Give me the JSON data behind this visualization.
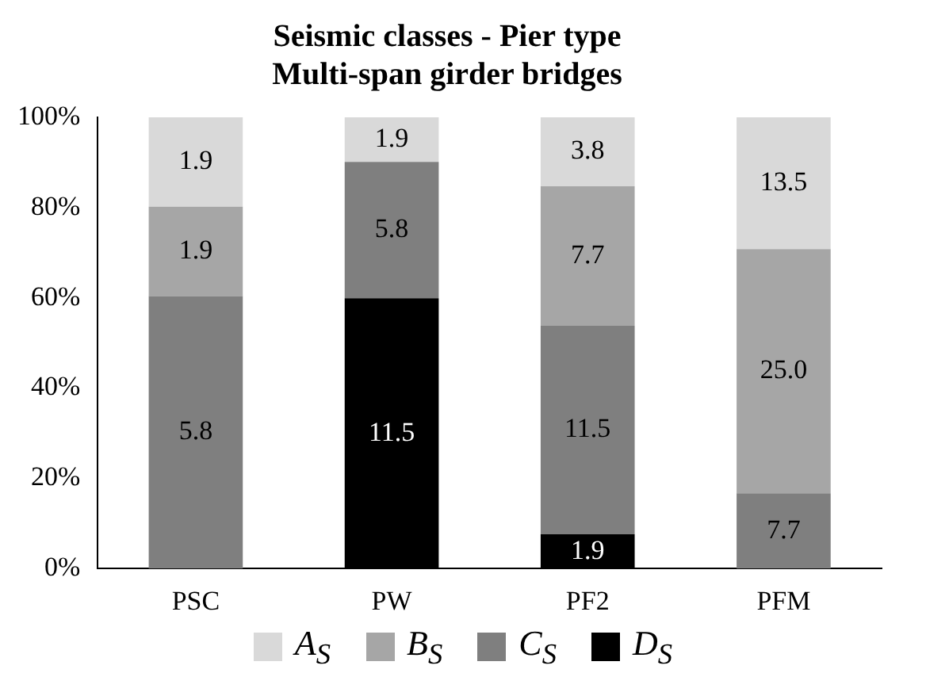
{
  "chart_data": {
    "type": "bar",
    "stacked": true,
    "title": "Seismic classes - Pier type\nMulti-span girder bridges",
    "categories": [
      "PSC",
      "PW",
      "PF2",
      "PFM"
    ],
    "series": [
      {
        "name": "D$_{S}$",
        "color": "#000000",
        "values": [
          null,
          59.9,
          7.6,
          null
        ]
      },
      {
        "name": "C$_{S}$",
        "color": "#7f7f7f",
        "values": [
          60.4,
          30.2,
          46.2,
          16.7
        ]
      },
      {
        "name": "B$_{S}$",
        "color": "#a6a6a6",
        "values": [
          19.8,
          null,
          30.9,
          54.1
        ]
      },
      {
        "name": "A$_{S}$",
        "color": "#d9d9d9",
        "values": [
          19.8,
          9.9,
          15.3,
          29.2
        ]
      }
    ],
    "annotations": [
      "11.5",
      "1.9",
      "5.8",
      "5.8",
      "11.5",
      "7.7",
      "1.9",
      "7.7",
      "25.0",
      "1.9",
      "1.9",
      "3.8",
      "13.5"
    ],
    "ylim": [
      0,
      100
    ],
    "yticks": [
      {
        "value": 0,
        "label": "0%"
      },
      {
        "value": 20,
        "label": "20%"
      },
      {
        "value": 40,
        "label": "40%"
      },
      {
        "value": 60,
        "label": "60%"
      },
      {
        "value": 80,
        "label": "80%"
      },
      {
        "value": 100,
        "label": "100%"
      }
    ],
    "grid": false,
    "legend": "bottom"
  }
}
